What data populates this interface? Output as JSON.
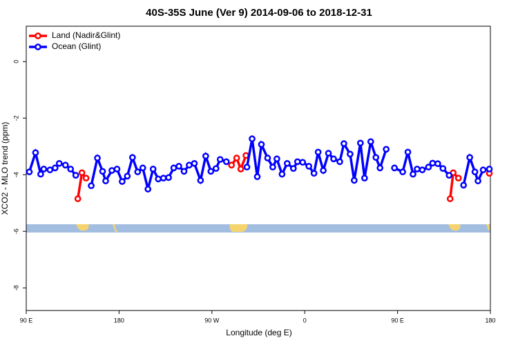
{
  "chart_data": {
    "type": "line",
    "title": "40S-35S June (Ver 9)   2014-09-06 to 2018-12-31",
    "x_label": "Longitude (deg E)",
    "y_label": "XCO2 - MLO trend (ppm)",
    "xlim": [
      90,
      540
    ],
    "xticks": [
      {
        "value": 90,
        "label": "90 E"
      },
      180,
      {
        "value": 270,
        "label": "90 W"
      },
      {
        "value": 360,
        "label": "0"
      },
      {
        "value": 450,
        "label": "90 E"
      },
      {
        "value": 540,
        "label": "180"
      }
    ],
    "ylim": [
      -8.8,
      1.25
    ],
    "yticks": [
      0,
      -2,
      -4,
      -6,
      -8
    ],
    "legend": "top-left",
    "series": [
      {
        "name": "Land (Nadir&Glint)",
        "color": "#ff0000",
        "x": [
          140,
          144,
          148,
          null,
          289,
          294,
          298,
          303,
          null,
          501,
          504,
          509,
          null,
          539
        ],
        "values": [
          -4.85,
          -3.93,
          -4.12,
          null,
          -3.66,
          -3.41,
          -3.8,
          -3.32,
          null,
          -4.85,
          -3.93,
          -4.12,
          null,
          -3.95
        ]
      },
      {
        "name": "Ocean (Glint)",
        "color": "#0000ff",
        "x": [
          93,
          99,
          104,
          107,
          113,
          118,
          122,
          128,
          133,
          138,
          null,
          153,
          159,
          164,
          167,
          173,
          178,
          183,
          188,
          193,
          198,
          203,
          208,
          213,
          218,
          223,
          228,
          233,
          238,
          243,
          248,
          253,
          259,
          264,
          269,
          274,
          278,
          284,
          null,
          304,
          309,
          314,
          318,
          324,
          329,
          333,
          338,
          343,
          349,
          353,
          358,
          364,
          369,
          373,
          378,
          383,
          388,
          394,
          398,
          404,
          408,
          414,
          418,
          424,
          429,
          433,
          439,
          null,
          447,
          455,
          460,
          465,
          469,
          474,
          480,
          484,
          489,
          494,
          500,
          null,
          514,
          520,
          525,
          528,
          533,
          539
        ],
        "values": [
          -3.9,
          -3.22,
          -3.98,
          -3.8,
          -3.83,
          -3.76,
          -3.6,
          -3.66,
          -3.8,
          -4.02,
          null,
          -4.39,
          -3.41,
          -3.88,
          -4.22,
          -3.85,
          -3.8,
          -4.24,
          -4.05,
          -3.39,
          -3.9,
          -3.76,
          -4.51,
          -3.8,
          -4.15,
          -4.12,
          -4.1,
          -3.76,
          -3.7,
          -3.88,
          -3.66,
          -3.6,
          -4.2,
          -3.34,
          -3.88,
          -3.78,
          -3.46,
          -3.54,
          null,
          -3.73,
          -2.73,
          -4.07,
          -2.93,
          -3.41,
          -3.73,
          -3.44,
          -3.98,
          -3.6,
          -3.78,
          -3.54,
          -3.56,
          -3.7,
          -3.95,
          -3.2,
          -3.85,
          -3.24,
          -3.44,
          -3.54,
          -2.9,
          -3.27,
          -4.2,
          -2.88,
          -4.12,
          -2.83,
          -3.39,
          -3.76,
          -3.1,
          null,
          -3.76,
          -3.9,
          -3.2,
          -3.98,
          -3.8,
          -3.83,
          -3.73,
          -3.59,
          -3.61,
          -3.78,
          -4.02,
          null,
          -4.37,
          -3.39,
          -3.9,
          -4.22,
          -3.83,
          -3.8
        ]
      }
    ]
  }
}
